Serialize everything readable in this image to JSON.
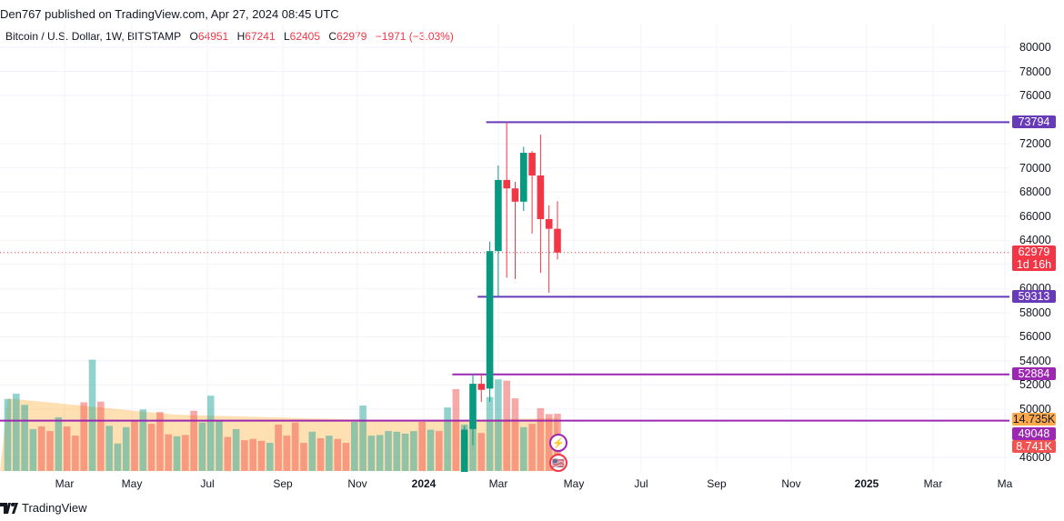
{
  "header": {
    "published": "Den767 published on TradingView.com, Apr 27, 2024 08:45 UTC"
  },
  "legend": {
    "symbol": "Bitcoin / U.S. Dollar, 1W, BITSTAMP",
    "o_label": "O",
    "o": "64951",
    "h_label": "H",
    "h": "67241",
    "l_label": "L",
    "l": "62405",
    "c_label": "C",
    "c": "62979",
    "change": "−1971 (−3.03%)"
  },
  "colors": {
    "up": "#089981",
    "down": "#f23645",
    "purple": "#673ab7",
    "magenta": "#9c27b0",
    "vol_up": "#26a69a",
    "vol_down": "#ef5350",
    "ma": "#ff9800"
  },
  "price_axis": {
    "ticks": [
      "80000",
      "78000",
      "76000",
      "72000",
      "70000",
      "68000",
      "66000",
      "64000",
      "60000",
      "58000",
      "56000",
      "54000",
      "52000",
      "50000",
      "46000"
    ],
    "range": [
      46000,
      80000
    ]
  },
  "price_labels": [
    {
      "text": "73794",
      "value": 73794,
      "color": "#673ab7"
    },
    {
      "text": "62979",
      "sub": "1d 16h",
      "value": 62979,
      "color": "#f23645"
    },
    {
      "text": "59313",
      "value": 59313,
      "color": "#673ab7"
    },
    {
      "text": "52884",
      "value": 52884,
      "color": "#9c27b0"
    },
    {
      "text": "14.735K",
      "color": "#ffa94d",
      "dark": true
    },
    {
      "text": "49048",
      "value": 49048,
      "color": "#9c27b0"
    },
    {
      "text": "8.741K",
      "color": "#f05350"
    }
  ],
  "levels": [
    {
      "value": 73794,
      "start_bar": 57,
      "color": "#673ab7"
    },
    {
      "value": 59313,
      "start_bar": 56,
      "color": "#673ab7"
    },
    {
      "value": 52884,
      "start_bar": 53,
      "color": "#9c27b0"
    },
    {
      "value": 49048,
      "start_bar": 0,
      "color": "#9c27b0"
    }
  ],
  "x_axis": [
    {
      "label": "Mar"
    },
    {
      "label": "May"
    },
    {
      "label": "Jul"
    },
    {
      "label": "Sep"
    },
    {
      "label": "Nov"
    },
    {
      "label": "2024",
      "bold": true
    },
    {
      "label": "Mar"
    },
    {
      "label": "May"
    },
    {
      "label": "Jul"
    },
    {
      "label": "Sep"
    },
    {
      "label": "Nov"
    },
    {
      "label": "2025",
      "bold": true
    },
    {
      "label": "Mar"
    },
    {
      "label": "Ma"
    }
  ],
  "candles_start_bar": 54,
  "candles": [
    {
      "week": "2024-02-05",
      "o": 42600,
      "h": 48600,
      "l": 42500,
      "c": 48300
    },
    {
      "week": "2024-02-12",
      "o": 48350,
      "h": 52900,
      "l": 47000,
      "c": 52100
    },
    {
      "week": "2024-02-19",
      "o": 52100,
      "h": 52884,
      "l": 50600,
      "c": 51600
    },
    {
      "week": "2024-02-26",
      "o": 51700,
      "h": 63900,
      "l": 50600,
      "c": 63100
    },
    {
      "week": "2024-03-04",
      "o": 63100,
      "h": 70200,
      "l": 59313,
      "c": 69000
    },
    {
      "week": "2024-03-11",
      "o": 69000,
      "h": 73794,
      "l": 60900,
      "c": 68300
    },
    {
      "week": "2024-03-18",
      "o": 68300,
      "h": 68850,
      "l": 60780,
      "c": 67200
    },
    {
      "week": "2024-03-25",
      "o": 67200,
      "h": 71750,
      "l": 66430,
      "c": 71250
    },
    {
      "week": "2024-04-01",
      "o": 71250,
      "h": 71400,
      "l": 64550,
      "c": 69370
    },
    {
      "week": "2024-04-08",
      "o": 69370,
      "h": 72750,
      "l": 61300,
      "c": 65750
    },
    {
      "week": "2024-04-15",
      "o": 65750,
      "h": 66880,
      "l": 59650,
      "c": 64951
    },
    {
      "week": "2024-04-22",
      "o": 64951,
      "h": 67241,
      "l": 62405,
      "c": 62979
    }
  ],
  "volume_k": [
    [
      11.0,
      1
    ],
    [
      11.8,
      1
    ],
    [
      10.1,
      1
    ],
    [
      6.4,
      1
    ],
    [
      6.8,
      0
    ],
    [
      6.1,
      0
    ],
    [
      8.2,
      1
    ],
    [
      6.8,
      0
    ],
    [
      5.4,
      0
    ],
    [
      10.5,
      0
    ],
    [
      17.0,
      1
    ],
    [
      10.6,
      0
    ],
    [
      6.9,
      1
    ],
    [
      4.2,
      1
    ],
    [
      6.7,
      1
    ],
    [
      7.7,
      0
    ],
    [
      9.4,
      1
    ],
    [
      7.2,
      0
    ],
    [
      9.0,
      0
    ],
    [
      5.6,
      0
    ],
    [
      5.3,
      1
    ],
    [
      5.5,
      0
    ],
    [
      9.2,
      0
    ],
    [
      7.4,
      1
    ],
    [
      11.5,
      1
    ],
    [
      7.7,
      1
    ],
    [
      5.2,
      0
    ],
    [
      6.4,
      1
    ],
    [
      4.7,
      0
    ],
    [
      4.9,
      0
    ],
    [
      4.6,
      0
    ],
    [
      4.3,
      1
    ],
    [
      7.1,
      0
    ],
    [
      5.4,
      0
    ],
    [
      7.4,
      0
    ],
    [
      4.3,
      0
    ],
    [
      6.0,
      1
    ],
    [
      5.0,
      0
    ],
    [
      5.4,
      1
    ],
    [
      4.9,
      0
    ],
    [
      4.3,
      0
    ],
    [
      7.5,
      1
    ],
    [
      10.0,
      1
    ],
    [
      5.4,
      1
    ],
    [
      5.5,
      1
    ],
    [
      6.1,
      1
    ],
    [
      6.0,
      1
    ],
    [
      5.7,
      1
    ],
    [
      6.1,
      1
    ],
    [
      7.5,
      0
    ],
    [
      6.3,
      1
    ],
    [
      6.1,
      0
    ],
    [
      9.7,
      1
    ],
    [
      12.5,
      0
    ],
    [
      7.1,
      1
    ],
    [
      6.7,
      1
    ],
    [
      5.8,
      0
    ],
    [
      11.3,
      1
    ],
    [
      14.0,
      1
    ],
    [
      13.8,
      0
    ],
    [
      11.1,
      0
    ],
    [
      6.7,
      1
    ],
    [
      7.2,
      0
    ],
    [
      9.6,
      0
    ],
    [
      8.7,
      0
    ],
    [
      8.741,
      0
    ]
  ],
  "volume_ma_keypoints": [
    [
      0,
      11.1
    ],
    [
      15,
      9.2
    ],
    [
      20,
      8.6
    ],
    [
      40,
      7.9
    ],
    [
      51,
      7.7
    ],
    [
      65,
      8.1
    ]
  ],
  "events": {
    "lightning": "⚡",
    "flags": "🇺🇸"
  },
  "footer": {
    "brand": "TradingView"
  }
}
